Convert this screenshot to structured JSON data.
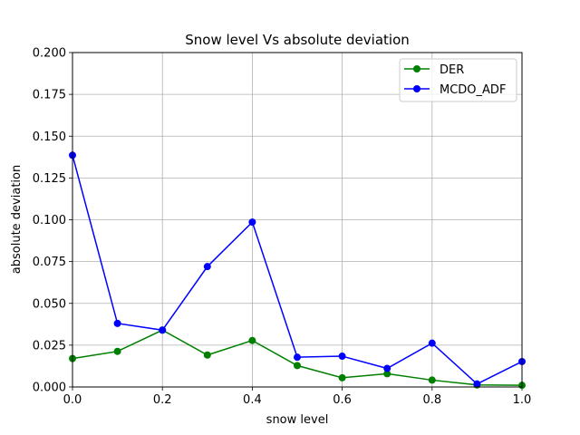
{
  "chart_data": {
    "type": "line",
    "title": "Snow level Vs absolute deviation",
    "xlabel": "snow level",
    "ylabel": "absolute deviation",
    "xlim": [
      0.0,
      1.0
    ],
    "ylim": [
      0.0,
      0.2
    ],
    "xticks": [
      "0.0",
      "0.2",
      "0.4",
      "0.6",
      "0.8",
      "1.0"
    ],
    "yticks": [
      "0.000",
      "0.025",
      "0.050",
      "0.075",
      "0.100",
      "0.125",
      "0.150",
      "0.175",
      "0.200"
    ],
    "grid": true,
    "legend_position": "top-right",
    "x": [
      0.0,
      0.1,
      0.2,
      0.3,
      0.4,
      0.5,
      0.6,
      0.7,
      0.8,
      0.9,
      1.0
    ],
    "series": [
      {
        "name": "DER",
        "color": "#008000",
        "values": [
          0.017,
          0.0213,
          0.034,
          0.0191,
          0.0278,
          0.0128,
          0.0055,
          0.0079,
          0.0041,
          0.0012,
          0.001
        ]
      },
      {
        "name": "MCDO_ADF",
        "color": "#0000ff",
        "values": [
          0.1386,
          0.038,
          0.034,
          0.072,
          0.0986,
          0.0178,
          0.0184,
          0.0111,
          0.0262,
          0.0018,
          0.0152
        ]
      }
    ]
  }
}
